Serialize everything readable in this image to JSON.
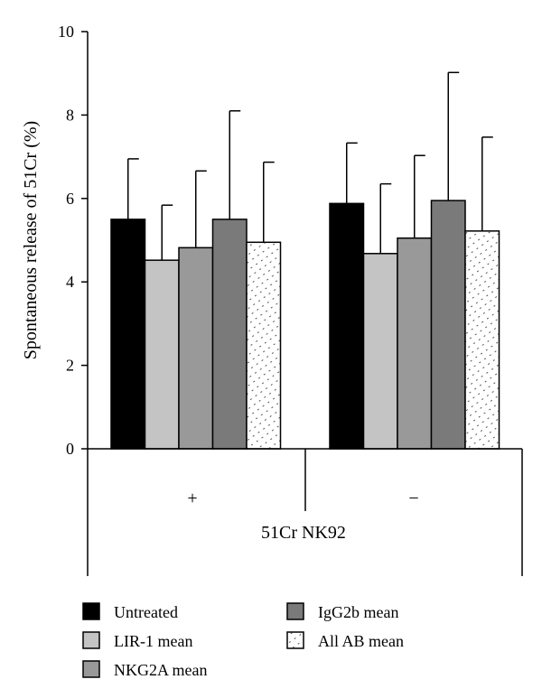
{
  "chart_data": {
    "type": "bar",
    "title": "",
    "ylabel": "Spontaneous release of 51Cr (%)",
    "xlabel": "51Cr NK92",
    "ylim": [
      0,
      10
    ],
    "yticks": [
      0,
      2,
      4,
      6,
      8,
      10
    ],
    "grid": false,
    "legend_position": "bottom",
    "categories": [
      "+",
      "−"
    ],
    "series": [
      {
        "name": "Untreated",
        "values": [
          5.5,
          5.88
        ],
        "errors": [
          1.45,
          1.45
        ],
        "color": "#000000",
        "pattern": "solid"
      },
      {
        "name": "LIR-1 mean",
        "values": [
          4.52,
          4.68
        ],
        "errors": [
          1.32,
          1.67
        ],
        "color": "#c4c4c4",
        "pattern": "solid"
      },
      {
        "name": "NKG2A mean",
        "values": [
          4.82,
          5.05
        ],
        "errors": [
          1.84,
          1.98
        ],
        "color": "#999999",
        "pattern": "solid"
      },
      {
        "name": "IgG2b mean",
        "values": [
          5.5,
          5.95
        ],
        "errors": [
          2.6,
          3.07
        ],
        "color": "#7a7a7a",
        "pattern": "solid"
      },
      {
        "name": "All AB mean",
        "values": [
          4.95,
          5.22
        ],
        "errors": [
          1.92,
          2.25
        ],
        "color": "#ffffff",
        "pattern": "dots"
      }
    ]
  }
}
